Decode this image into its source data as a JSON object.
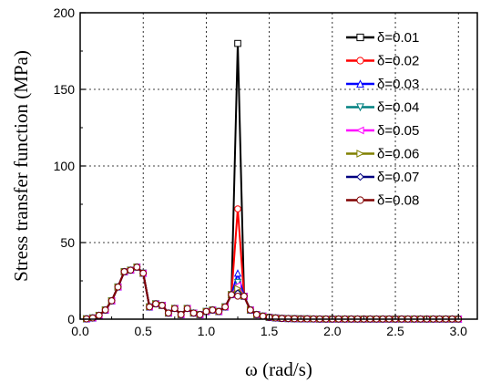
{
  "chart_data": {
    "type": "line",
    "xlabel": "ω (rad/s)",
    "ylabel": "Stress transfer function (MPa)",
    "xlim": [
      0,
      3.15
    ],
    "ylim": [
      0,
      200
    ],
    "xticks": [
      "0.0",
      "0.5",
      "1.0",
      "1.5",
      "2.0",
      "2.5",
      "3.0"
    ],
    "xtick_values": [
      0,
      0.5,
      1.0,
      1.5,
      2.0,
      2.5,
      3.0
    ],
    "yticks": [
      "0",
      "50",
      "100",
      "150",
      "200"
    ],
    "ytick_values": [
      0,
      50,
      100,
      150,
      200
    ],
    "grid": true,
    "legend_position": "top-right",
    "base_curve": {
      "x": [
        0.05,
        0.1,
        0.15,
        0.2,
        0.25,
        0.3,
        0.35,
        0.4,
        0.45,
        0.5,
        0.55,
        0.6,
        0.65,
        0.7,
        0.75,
        0.8,
        0.85,
        0.9,
        0.95,
        1.0,
        1.05,
        1.1,
        1.15,
        1.2,
        1.25,
        1.3,
        1.35,
        1.4,
        1.45,
        1.5,
        1.55,
        1.6,
        1.65,
        1.7,
        1.75,
        1.8,
        1.85,
        1.9,
        1.95,
        2.0,
        2.05,
        2.1,
        2.15,
        2.2,
        2.25,
        2.3,
        2.35,
        2.4,
        2.45,
        2.5,
        2.55,
        2.6,
        2.65,
        2.7,
        2.75,
        2.8,
        2.85,
        2.9,
        2.95,
        3.0
      ],
      "y": [
        0.2,
        0.8,
        2.5,
        6,
        12,
        21,
        31,
        32,
        34,
        30,
        8,
        10,
        9,
        4,
        7,
        3,
        7,
        4,
        3,
        5,
        6,
        5,
        8,
        16,
        0,
        15,
        6,
        3,
        2,
        1.2,
        0.8,
        0.5,
        0.4,
        0.3,
        0.2,
        0.2,
        0.15,
        0.1,
        0.1,
        0.1,
        0.1,
        0.1,
        0.1,
        0.1,
        0.1,
        0.1,
        0.1,
        0.1,
        0.1,
        0.1,
        0.1,
        0.1,
        0.1,
        0.1,
        0.1,
        0.1,
        0.1,
        0.1,
        0.1,
        0.1
      ]
    },
    "peak_x": 1.25,
    "series": [
      {
        "name": "δ=0.01",
        "color": "#000000",
        "marker": "square",
        "peak": 180
      },
      {
        "name": "δ=0.02",
        "color": "#ff0000",
        "marker": "circle",
        "peak": 72
      },
      {
        "name": "δ=0.03",
        "color": "#0000ff",
        "marker": "triangle-up",
        "peak": 30
      },
      {
        "name": "δ=0.04",
        "color": "#008080",
        "marker": "triangle-down",
        "peak": 24
      },
      {
        "name": "δ=0.05",
        "color": "#ff00ff",
        "marker": "triangle-left",
        "peak": 22
      },
      {
        "name": "δ=0.06",
        "color": "#808000",
        "marker": "triangle-right",
        "peak": 20
      },
      {
        "name": "δ=0.07",
        "color": "#000080",
        "marker": "diamond",
        "peak": 17
      },
      {
        "name": "δ=0.08",
        "color": "#800000",
        "marker": "circle",
        "peak": 15
      }
    ]
  }
}
